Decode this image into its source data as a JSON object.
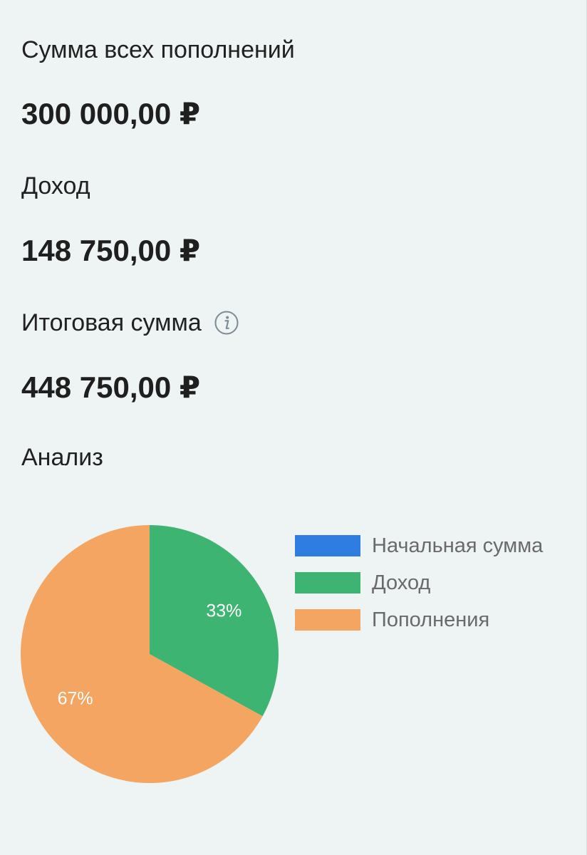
{
  "summary": {
    "deposits_label": "Сумма всех пополнений",
    "deposits_value": "300 000,00 ₽",
    "income_label": "Доход",
    "income_value": "148 750,00 ₽",
    "total_label": "Итоговая сумма",
    "total_value": "448 750,00 ₽",
    "info_icon": "info-icon"
  },
  "analysis": {
    "title": "Анализ"
  },
  "chart_data": {
    "type": "pie",
    "slices": [
      {
        "name": "Начальная сумма",
        "value": 0,
        "label": "",
        "color": "#2f7de1"
      },
      {
        "name": "Доход",
        "value": 33,
        "label": "33%",
        "color": "#3db471"
      },
      {
        "name": "Пополнения",
        "value": 67,
        "label": "67%",
        "color": "#f3a561"
      }
    ],
    "legend": [
      "Начальная сумма",
      "Доход",
      "Пополнения"
    ],
    "legend_position": "right"
  }
}
